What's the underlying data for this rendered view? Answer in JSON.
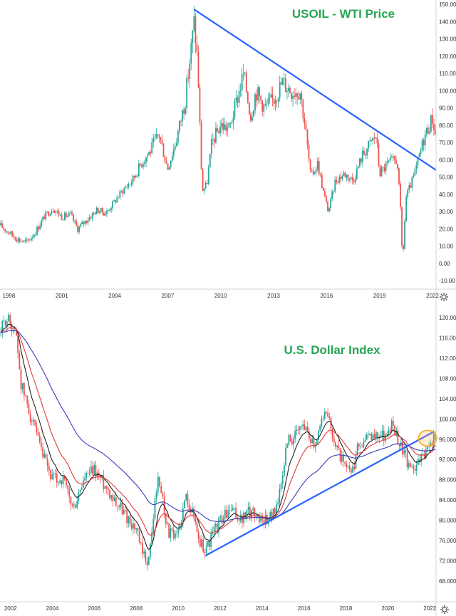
{
  "chart_data": [
    {
      "type": "candlestick",
      "title": "USOIL - WTI Price",
      "x_tick_labels": [
        "1998",
        "2001",
        "2004",
        "2007",
        "2010",
        "2013",
        "2016",
        "2019",
        "2022"
      ],
      "y_tick_labels": [
        "-10.00",
        "0.00",
        "10.00",
        "20.00",
        "30.00",
        "40.00",
        "50.00",
        "60.00",
        "70.00",
        "80.00",
        "90.00",
        "100.00",
        "110.00",
        "120.00",
        "130.00",
        "140.00",
        "150.00"
      ],
      "ylim": [
        -10,
        150
      ],
      "xlim": [
        1997.5,
        2022.2
      ],
      "series": [
        {
          "x": [
            1997.5,
            1998.0,
            1998.5,
            1999.0,
            1999.5,
            2000.0,
            2000.5,
            2001.0,
            2001.5,
            2001.9,
            2002.5,
            2003.0,
            2003.5,
            2004.0,
            2004.5,
            2005.0,
            2005.5,
            2006.0,
            2006.5,
            2007.0,
            2007.5,
            2008.0,
            2008.5,
            2008.7,
            2008.95,
            2009.2,
            2009.5,
            2010.0,
            2010.5,
            2011.0,
            2011.3,
            2011.7,
            2012.0,
            2012.5,
            2013.0,
            2013.5,
            2014.0,
            2014.5,
            2014.8,
            2015.1,
            2015.5,
            2015.8,
            2016.1,
            2016.5,
            2017.0,
            2017.5,
            2018.0,
            2018.5,
            2018.8,
            2019.0,
            2019.5,
            2020.0,
            2020.2,
            2020.3,
            2020.5,
            2021.0,
            2021.5,
            2021.8,
            2022.0,
            2022.2
          ],
          "y": [
            22,
            18,
            14,
            12,
            18,
            27,
            32,
            27,
            28,
            20,
            26,
            31,
            29,
            36,
            43,
            48,
            58,
            65,
            75,
            55,
            72,
            95,
            140,
            115,
            42,
            45,
            70,
            80,
            78,
            98,
            110,
            85,
            100,
            90,
            95,
            105,
            100,
            100,
            78,
            50,
            58,
            42,
            30,
            48,
            52,
            48,
            62,
            70,
            74,
            52,
            58,
            60,
            28,
            0,
            38,
            52,
            72,
            80,
            84,
            72
          ]
        }
      ],
      "trendline": {
        "from": [
          2008.5,
          147
        ],
        "to": [
          2022.2,
          54
        ]
      }
    },
    {
      "type": "candlestick",
      "title": "U.S. Dollar Index",
      "x_tick_labels": [
        "2002",
        "2004",
        "2006",
        "2008",
        "2010",
        "2012",
        "2014",
        "2016",
        "2018",
        "2020",
        "2022"
      ],
      "y_tick_labels": [
        "68.000",
        "72.000",
        "76.000",
        "80.000",
        "84.000",
        "88.000",
        "92.000",
        "96.000",
        "100.000",
        "104.000",
        "108.000",
        "112.000",
        "116.000",
        "120.000"
      ],
      "ylim": [
        66,
        122
      ],
      "xlim": [
        2001.5,
        2022.3
      ],
      "series": [
        {
          "x": [
            2001.5,
            2001.8,
            2002.0,
            2002.3,
            2002.5,
            2003.0,
            2003.5,
            2004.0,
            2004.5,
            2005.0,
            2005.5,
            2006.0,
            2006.5,
            2007.0,
            2007.5,
            2008.0,
            2008.3,
            2008.6,
            2009.0,
            2009.2,
            2009.5,
            2009.9,
            2010.4,
            2010.8,
            2011.0,
            2011.3,
            2011.6,
            2012.0,
            2012.5,
            2013.0,
            2013.5,
            2014.0,
            2014.5,
            2014.9,
            2015.2,
            2015.5,
            2016.0,
            2016.5,
            2016.9,
            2017.2,
            2017.5,
            2018.0,
            2018.3,
            2018.6,
            2019.0,
            2019.5,
            2020.0,
            2020.2,
            2020.5,
            2020.8,
            2021.0,
            2021.3,
            2021.6,
            2022.0
          ],
          "y": [
            117,
            120,
            119,
            116,
            107,
            100,
            93,
            88,
            88,
            82,
            88,
            90,
            87,
            84,
            81,
            78,
            73,
            72,
            88,
            86,
            78,
            76,
            85,
            80,
            76,
            74,
            77,
            80,
            82,
            80,
            82,
            80,
            81,
            86,
            96,
            96,
            99,
            95,
            101,
            100,
            95,
            90,
            89,
            95,
            96,
            97,
            97,
            99,
            96,
            93,
            90,
            91,
            92,
            96
          ]
        }
      ],
      "trendline": {
        "from": [
          2011.3,
          73
        ],
        "to": [
          2022.2,
          97.5
        ]
      },
      "highlight": {
        "x": 2021.9,
        "y": 96.2
      }
    }
  ]
}
